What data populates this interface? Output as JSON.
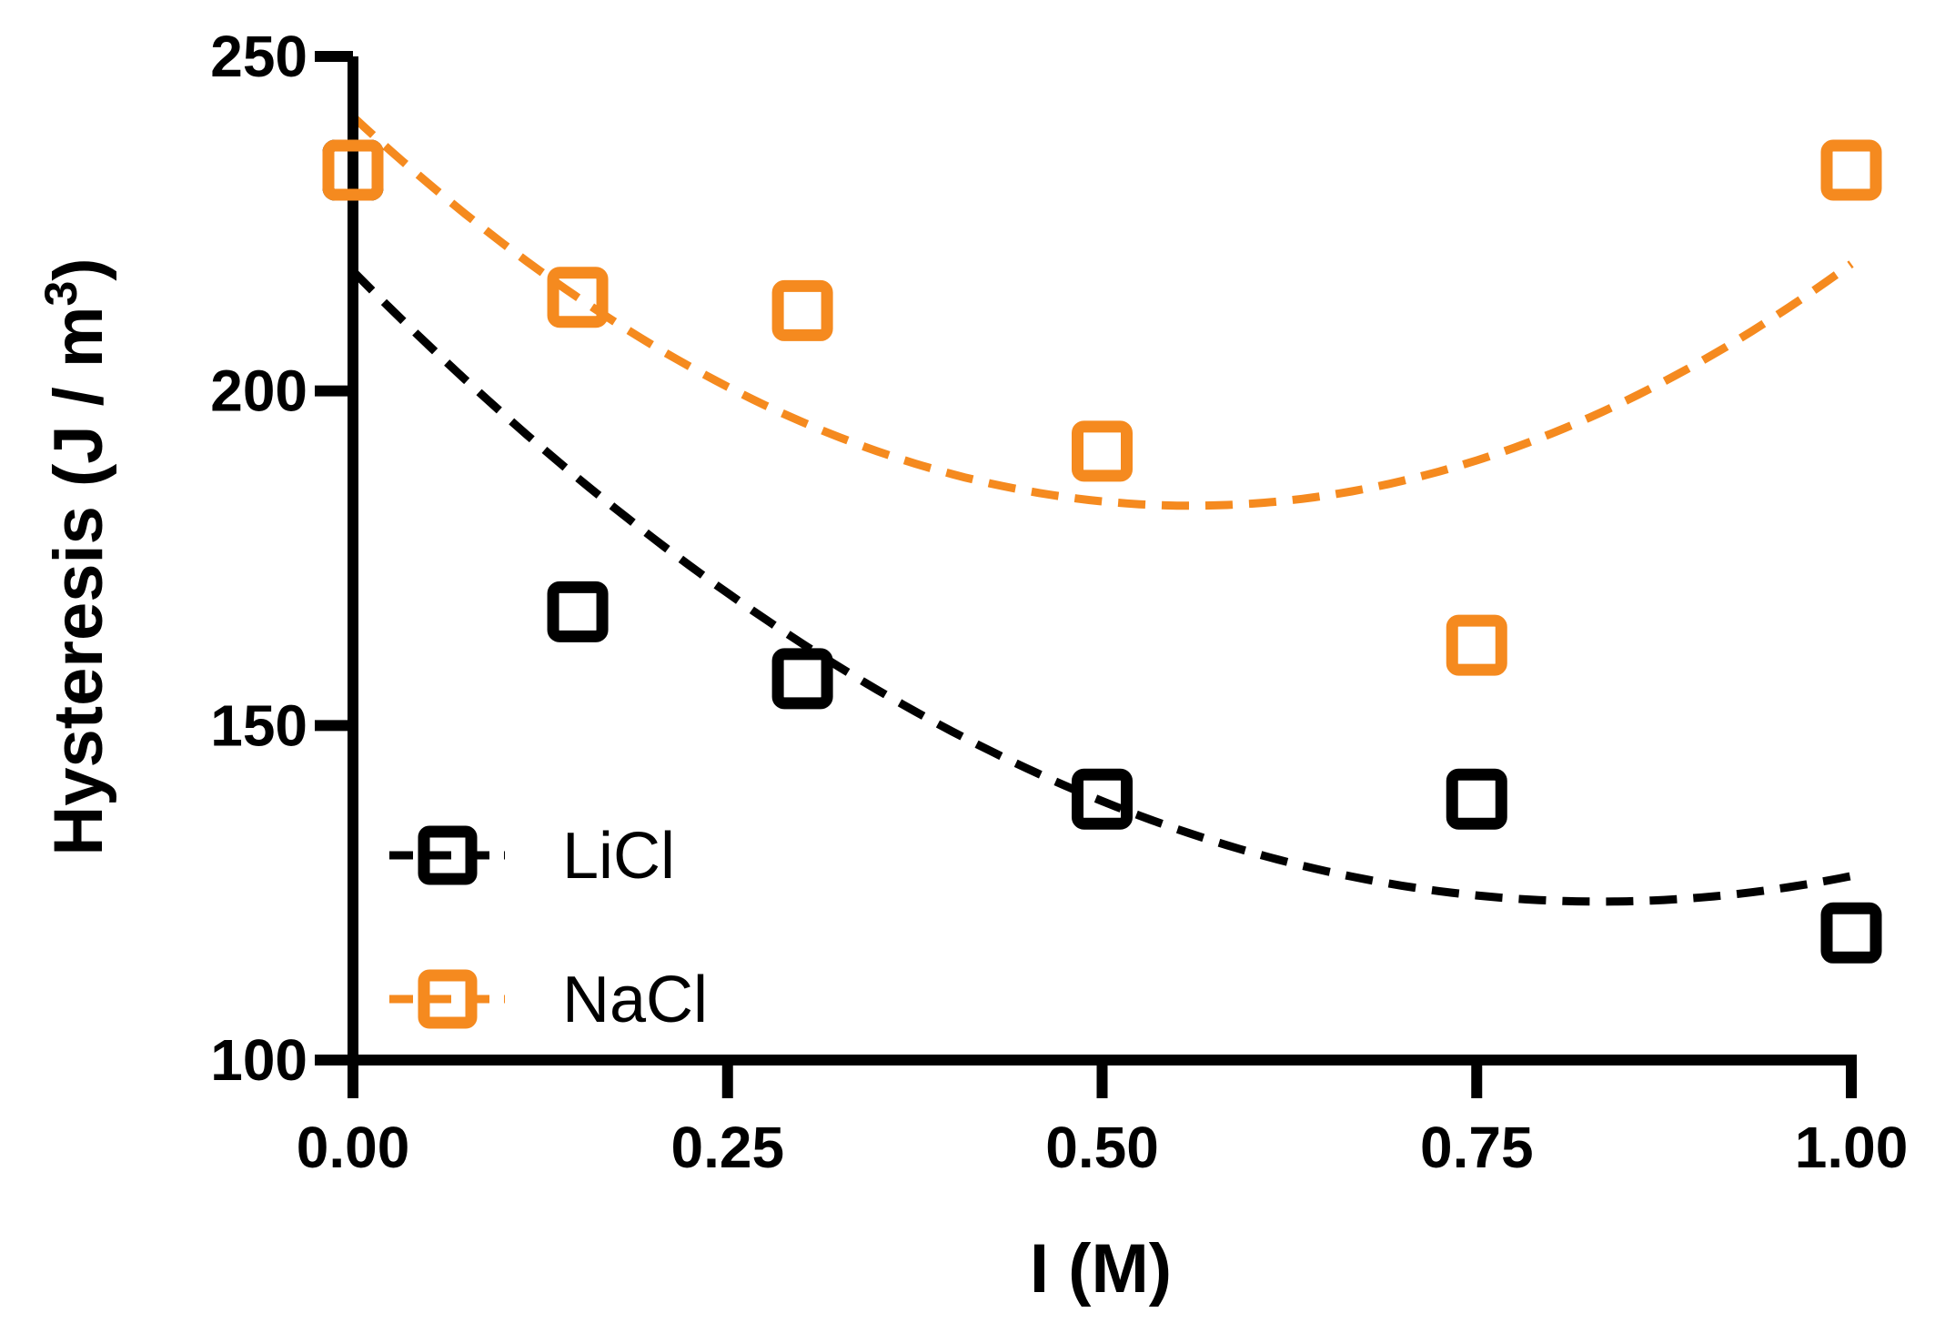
{
  "chart_data": {
    "type": "scatter",
    "xlabel": "I (M)",
    "ylabel_main": "Hysteresis (J / m",
    "ylabel_sup": "3",
    "ylabel_close": ")",
    "xlim": [
      0,
      1.0
    ],
    "ylim": [
      100,
      250
    ],
    "xticks": [
      0.0,
      0.25,
      0.5,
      0.75,
      1.0
    ],
    "xtick_labels": [
      "0.00",
      "0.25",
      "0.50",
      "0.75",
      "1.00"
    ],
    "yticks": [
      100,
      150,
      200,
      250
    ],
    "ytick_labels": [
      "100",
      "150",
      "200",
      "250"
    ],
    "legend_position": "bottom-left",
    "series": [
      {
        "name": "LiCl",
        "color": "#000000",
        "marker": "open-square",
        "x": [
          0.0,
          0.15,
          0.3,
          0.5,
          0.75,
          1.0
        ],
        "y": [
          233,
          167,
          157,
          139,
          139,
          119
        ],
        "fit": {
          "type": "quadratic",
          "style": "dashed",
          "x_range": [
            0.0,
            1.0
          ],
          "coefficients": [
            217.9,
            -226.4,
            136.0
          ]
        }
      },
      {
        "name": "NaCl",
        "color": "#F58A1F",
        "marker": "open-square",
        "x": [
          0.0,
          0.15,
          0.3,
          0.5,
          0.75,
          1.0
        ],
        "y": [
          233,
          214,
          212,
          191,
          162,
          233
        ],
        "fit": {
          "type": "quadratic",
          "style": "dashed",
          "x_range": [
            0.0,
            1.0
          ],
          "coefficients": [
            241.0,
            -208.0,
            186.0
          ]
        }
      }
    ]
  }
}
